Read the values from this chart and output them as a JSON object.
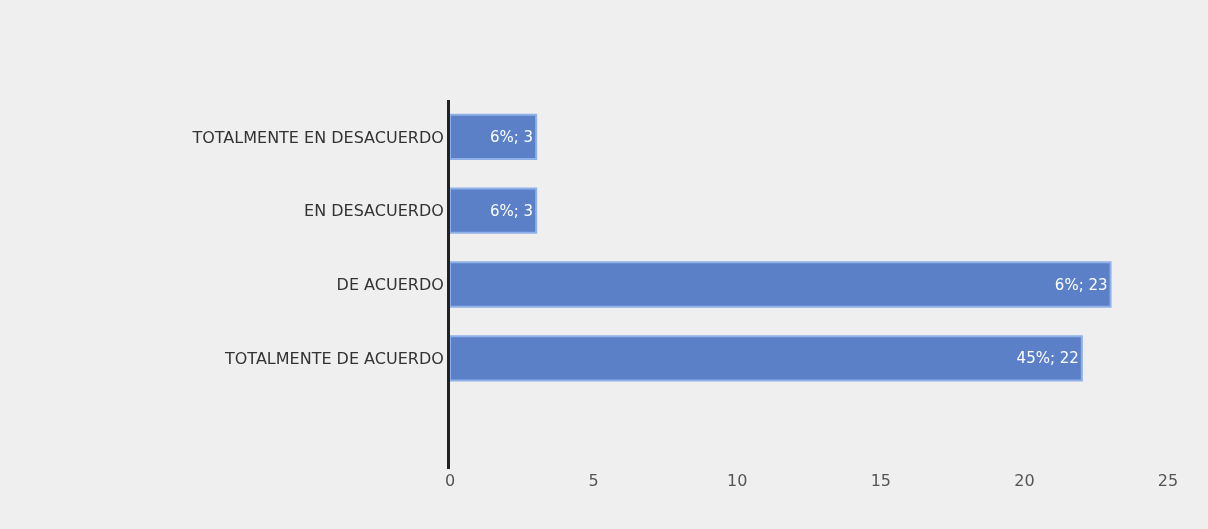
{
  "chart_data": {
    "type": "bar",
    "orientation": "horizontal",
    "categories": [
      "TOTALMENTE EN DESACUERDO",
      "EN DESACUERDO",
      "DE ACUERDO",
      "TOTALMENTE DE ACUERDO",
      null
    ],
    "values": [
      3,
      3,
      23,
      22,
      null
    ],
    "value_labels": [
      "6%; 3",
      "6%; 3",
      "6%; 23",
      "45%; 22",
      null
    ],
    "color": "#5b80c8",
    "xlim": [
      0,
      25
    ],
    "xticks": [
      0,
      5,
      10,
      15,
      20,
      25
    ],
    "grid": false
  }
}
